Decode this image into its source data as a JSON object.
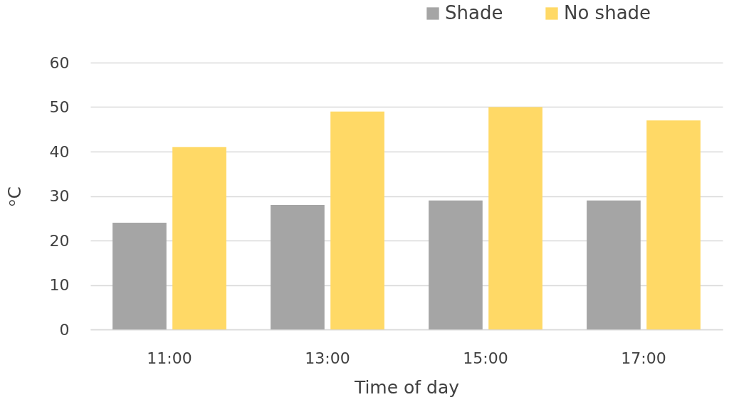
{
  "chart_data": {
    "type": "bar",
    "xlabel": "Time of day",
    "ylabel": "ᵒC",
    "categories": [
      "11:00",
      "13:00",
      "15:00",
      "17:00"
    ],
    "series": [
      {
        "name": "Shade",
        "color": "#a5a5a5",
        "values": [
          24,
          28,
          29,
          29
        ]
      },
      {
        "name": "No shade",
        "color": "#ffd966",
        "values": [
          41,
          49,
          50,
          47
        ]
      }
    ],
    "ylim": [
      0,
      60
    ],
    "yticks": [
      0,
      10,
      20,
      30,
      40,
      50,
      60
    ],
    "grid": "y",
    "legend": "top right"
  }
}
